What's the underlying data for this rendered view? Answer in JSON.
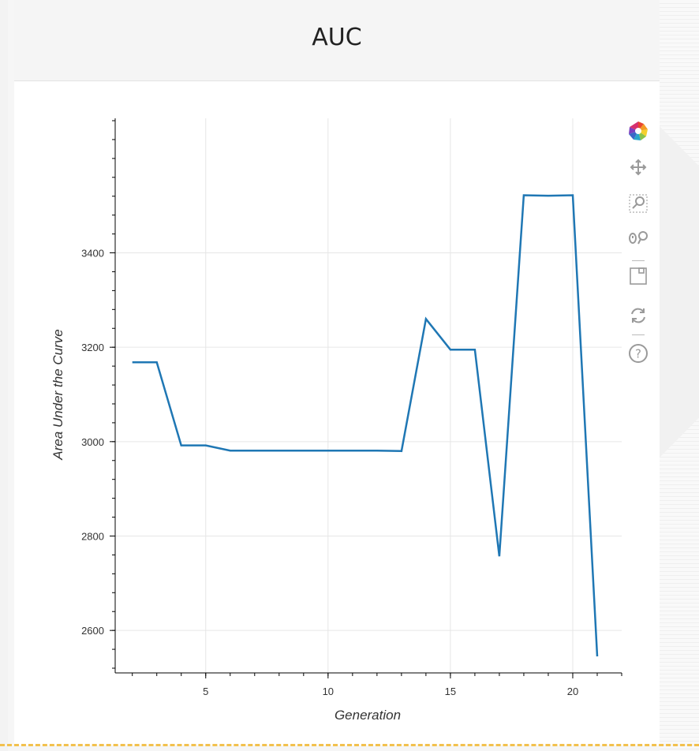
{
  "panel": {
    "title": "AUC"
  },
  "toolbar": {
    "tools": [
      {
        "name": "bokeh-logo-icon"
      },
      {
        "name": "pan-icon"
      },
      {
        "name": "box-zoom-icon"
      },
      {
        "name": "wheel-zoom-icon"
      },
      {
        "name": "save-icon"
      },
      {
        "name": "reset-icon"
      },
      {
        "name": "help-icon"
      }
    ]
  },
  "chart_data": {
    "type": "line",
    "title": "",
    "xlabel": "Generation",
    "ylabel": "Area Under the Curve",
    "xlim": [
      1.3,
      22
    ],
    "ylim": [
      2510,
      3685
    ],
    "x_ticks": [
      5,
      10,
      15,
      20
    ],
    "y_ticks": [
      2600,
      2800,
      3000,
      3200,
      3400
    ],
    "grid": true,
    "series_color": "#1f77b4",
    "series": [
      {
        "x": [
          2,
          3,
          4,
          5,
          6,
          7,
          8,
          9,
          10,
          11,
          12,
          13,
          14,
          15,
          16,
          17,
          18,
          19,
          20,
          21
        ],
        "y": [
          3168,
          3168,
          2992,
          2992,
          2981,
          2981,
          2981,
          2981,
          2981,
          2981,
          2981,
          2980,
          3260,
          3195,
          3195,
          2757,
          3522,
          3521,
          3522,
          2545
        ]
      }
    ]
  }
}
